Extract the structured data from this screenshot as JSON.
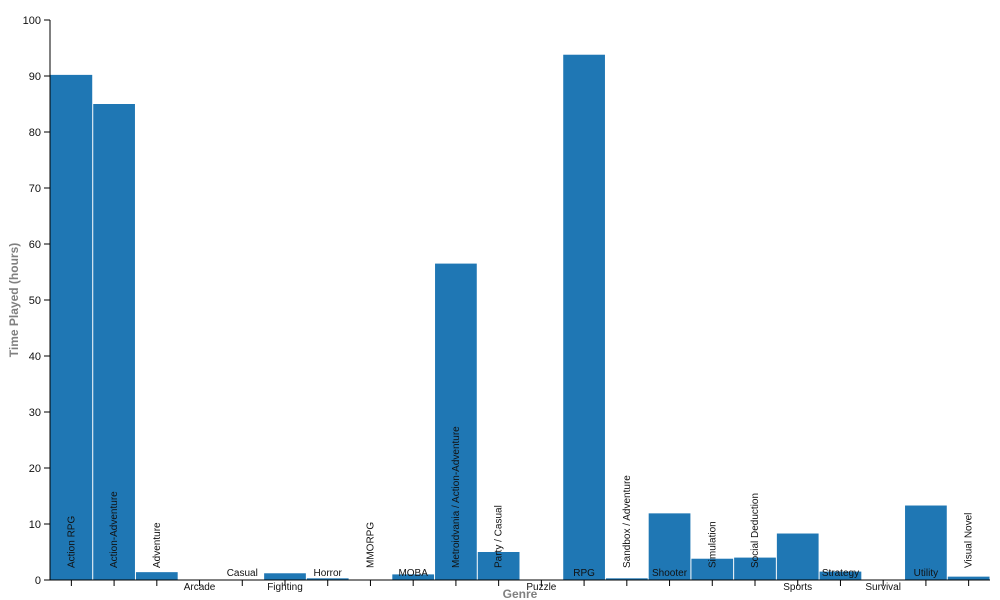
{
  "chart_data": {
    "type": "bar",
    "xlabel": "Genre",
    "ylabel": "Time Played (hours)",
    "ylim": [
      0,
      100
    ],
    "yticks": [
      0,
      10,
      20,
      30,
      40,
      50,
      60,
      70,
      80,
      90,
      100
    ],
    "bar_color": "#1f77b4",
    "categories": [
      "Action RPG",
      "Action-Adventure",
      "Adventure",
      "Arcade",
      "Casual",
      "Fighting",
      "Horror",
      "MMORPG",
      "MOBA",
      "Metroidvania / Action-Adventure",
      "Party / Casual",
      "Puzzle",
      "RPG",
      "Sandbox / Adventure",
      "Shooter",
      "Simulation",
      "Social Deduction",
      "Sports",
      "Strategy",
      "Survival",
      "Utility",
      "Visual Novel"
    ],
    "values": [
      90.2,
      85.0,
      1.4,
      0.0,
      0.0,
      1.2,
      0.3,
      0.0,
      1.0,
      56.5,
      5.0,
      0.0,
      93.8,
      0.3,
      11.9,
      3.8,
      4.0,
      8.3,
      1.5,
      0.0,
      13.3,
      0.6
    ]
  }
}
